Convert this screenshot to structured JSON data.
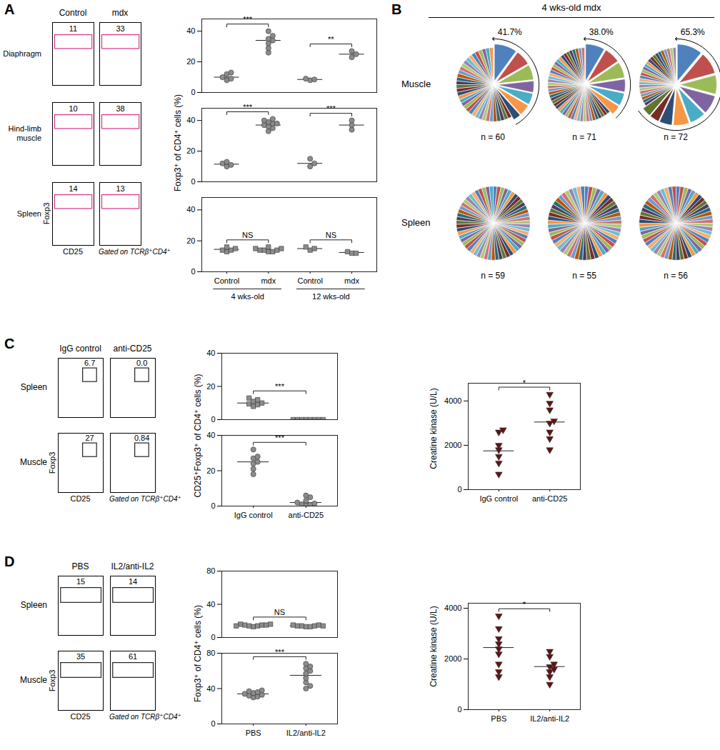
{
  "chart_data": [
    {
      "type": "flow",
      "panel": "A",
      "columns": [
        "Control",
        "mdx"
      ],
      "rows": [
        "Diaphragm",
        "Hind-limb muscle",
        "Spleen"
      ],
      "gates": [
        [
          "11",
          "33"
        ],
        [
          "10",
          "38"
        ],
        [
          "14",
          "13"
        ]
      ],
      "xlabel": "CD25",
      "ylabel": "Foxp3",
      "note": "Gated on TCRβ⁺CD4⁺"
    },
    {
      "type": "scatter",
      "ylabel": "Foxp3⁺ of CD4⁺ cells (%)",
      "categories": [
        "Control",
        "mdx",
        "Control",
        "mdx"
      ],
      "groups": [
        "4 wks-old",
        "12 wks-old"
      ],
      "subplots": [
        {
          "marker": "circle",
          "color": "#8c8c8c",
          "ylim": [
            0,
            48
          ],
          "yticks": [
            0,
            20,
            40
          ],
          "values": [
            [
              8,
              9,
              10,
              12,
              13
            ],
            [
              26,
              29,
              32,
              34,
              35,
              37,
              40
            ],
            [
              8,
              8.5,
              9
            ],
            [
              23,
              25,
              27
            ]
          ],
          "means": [
            10,
            34,
            8.5,
            25
          ],
          "comparisons": [
            "***",
            "**"
          ]
        },
        {
          "marker": "circle",
          "color": "#8c8c8c",
          "ylim": [
            0,
            48
          ],
          "yticks": [
            0,
            20,
            40
          ],
          "values": [
            [
              10,
              11,
              12,
              13
            ],
            [
              33,
              35,
              36,
              37,
              38,
              38,
              39,
              40,
              41
            ],
            [
              10,
              12,
              15
            ],
            [
              34,
              37,
              40
            ]
          ],
          "means": [
            11.5,
            37,
            12,
            37
          ],
          "comparisons": [
            "***",
            "***"
          ]
        },
        {
          "marker": "square",
          "color": "#8c8c8c",
          "ylim": [
            0,
            48
          ],
          "yticks": [
            0,
            20,
            40
          ],
          "values": [
            [
              13,
              14,
              14,
              15,
              16
            ],
            [
              13,
              13,
              14,
              14,
              14,
              15,
              15,
              16
            ],
            [
              14,
              15,
              16
            ],
            [
              12,
              12,
              13
            ]
          ],
          "means": [
            14.5,
            14,
            15,
            12.5
          ],
          "comparisons": [
            "NS",
            "NS"
          ]
        }
      ]
    },
    {
      "type": "pie",
      "panel": "B",
      "title": "4 wks-old mdx",
      "rows": [
        {
          "label": "Muscle",
          "pies": [
            {
              "values": [
                6,
                4,
                4,
                3,
                3,
                3,
                2,
                1,
                1,
                1,
                1,
                1,
                1,
                1,
                1,
                1,
                1,
                1,
                1,
                1,
                1,
                1,
                1,
                1,
                1,
                1,
                1,
                1,
                1,
                1,
                1,
                1,
                1,
                1,
                1,
                1,
                1,
                1,
                1,
                1,
                1,
                1
              ],
              "n_label": "n = 60",
              "expanded": {
                "value": 41.7,
                "label": "41.7%"
              }
            },
            {
              "values": [
                6,
                5,
                5,
                4,
                4,
                3,
                1,
                1,
                1,
                1,
                1,
                1,
                1,
                1,
                1,
                1,
                1,
                1,
                1,
                1,
                1,
                1,
                1,
                1,
                1,
                1,
                1,
                1,
                1,
                1,
                1,
                1,
                1,
                1,
                1,
                1,
                1,
                1,
                1,
                1,
                1,
                1,
                1,
                1,
                1,
                1,
                1,
                1,
                1,
                1
              ],
              "n_label": "n = 71",
              "expanded": {
                "value": 38.0,
                "label": "38.0%"
              }
            },
            {
              "values": [
                8,
                7,
                6,
                6,
                5,
                5,
                4,
                3,
                3,
                1,
                1,
                1,
                1,
                1,
                1,
                1,
                1,
                1,
                1,
                1,
                1,
                1,
                1,
                1,
                1,
                1,
                1,
                1,
                1,
                1,
                1,
                1,
                1,
                1
              ],
              "n_label": "n = 72",
              "expanded": {
                "value": 65.3,
                "label": "65.3%"
              }
            }
          ]
        },
        {
          "label": "Spleen",
          "pies": [
            {
              "values": [
                1,
                1,
                1,
                1,
                1,
                1,
                1,
                1,
                1,
                1,
                1,
                1,
                1,
                1,
                1,
                1,
                1,
                1,
                1,
                1,
                1,
                1,
                1,
                1,
                1,
                1,
                1,
                1,
                1,
                1,
                1,
                1,
                1,
                1,
                1,
                1,
                1,
                1,
                1,
                1,
                1,
                1,
                1,
                1,
                1,
                1,
                1,
                1,
                1,
                1,
                1,
                1,
                1,
                1,
                1,
                1,
                1,
                1,
                1
              ],
              "n_label": "n = 59"
            },
            {
              "values": [
                1,
                1,
                1,
                1,
                1,
                1,
                1,
                1,
                1,
                1,
                1,
                1,
                1,
                1,
                1,
                1,
                1,
                1,
                1,
                1,
                1,
                1,
                1,
                1,
                1,
                1,
                1,
                1,
                1,
                1,
                1,
                1,
                1,
                1,
                1,
                1,
                1,
                1,
                1,
                1,
                1,
                1,
                1,
                1,
                1,
                1,
                1,
                1,
                1,
                1,
                1,
                1,
                1,
                1,
                1
              ],
              "n_label": "n = 55"
            },
            {
              "values": [
                1,
                1,
                1,
                1,
                1,
                1,
                1,
                1,
                1,
                1,
                1,
                1,
                1,
                1,
                1,
                1,
                1,
                1,
                1,
                1,
                1,
                1,
                1,
                1,
                1,
                1,
                1,
                1,
                1,
                1,
                1,
                1,
                1,
                1,
                1,
                1,
                1,
                1,
                1,
                1,
                1,
                1,
                1,
                1,
                1,
                1,
                1,
                1,
                1,
                1,
                1,
                1,
                1,
                1,
                1,
                1
              ],
              "n_label": "n = 56"
            }
          ]
        }
      ]
    },
    {
      "type": "flow",
      "panel": "C",
      "columns": [
        "IgG control",
        "anti-CD25"
      ],
      "rows": [
        "Spleen",
        "Muscle"
      ],
      "gates": [
        [
          "6.7",
          "0.0"
        ],
        [
          "27",
          "0.84"
        ]
      ],
      "xlabel": "CD25",
      "ylabel": "Foxp3",
      "note": "Gated on TCRβ⁺CD4⁺"
    },
    {
      "type": "scatter",
      "ylabel": "CD25⁺Foxp3⁺ of CD4⁺ cells (%)",
      "categories": [
        "IgG control",
        "anti-CD25"
      ],
      "subplots": [
        {
          "marker": "square",
          "color": "#8c8c8c",
          "ylim": [
            0,
            40
          ],
          "yticks": [
            0,
            20,
            40
          ],
          "values": [
            [
              8,
              9,
              9.5,
              10,
              11,
              12,
              13
            ],
            [
              0,
              0,
              0,
              0,
              0,
              0,
              0,
              0
            ]
          ],
          "means": [
            10,
            0
          ],
          "comparisons": [
            "***"
          ]
        },
        {
          "marker": "circle",
          "color": "#8c8c8c",
          "ylim": [
            0,
            40
          ],
          "yticks": [
            0,
            20,
            40
          ],
          "values": [
            [
              18,
              21,
              24,
              25,
              27,
              28,
              32
            ],
            [
              0.5,
              0.8,
              1,
              1.5,
              2,
              3,
              5,
              6
            ]
          ],
          "means": [
            25,
            2
          ],
          "comparisons": [
            "***"
          ]
        }
      ]
    },
    {
      "type": "scatter",
      "ylabel": "Creatine kinase (U/L)",
      "categories": [
        "IgG control",
        "anti-CD25"
      ],
      "subplots": [
        {
          "marker": "triangle-down",
          "color": "#5e1414",
          "ylim": [
            0,
            4800
          ],
          "yticks": [
            0,
            2000,
            4000
          ],
          "values": [
            [
              700,
              1200,
              1500,
              1800,
              2000,
              2600,
              2700
            ],
            [
              1800,
              2300,
              2600,
              3000,
              3100,
              3600,
              3900,
              4300
            ]
          ],
          "means": [
            1750,
            3050
          ],
          "comparisons": [
            "*"
          ]
        }
      ]
    },
    {
      "type": "flow",
      "panel": "D",
      "columns": [
        "PBS",
        "IL2/anti-IL2"
      ],
      "rows": [
        "Spleen",
        "Muscle"
      ],
      "gates": [
        [
          "15",
          "14"
        ],
        [
          "35",
          "61"
        ]
      ],
      "xlabel": "CD25",
      "ylabel": "Foxp3",
      "note": "Gated on TCRβ⁺CD4⁺"
    },
    {
      "type": "scatter",
      "ylabel": "Foxp3⁺ of CD4⁺ cells (%)",
      "categories": [
        "PBS",
        "IL2/anti-IL2"
      ],
      "subplots": [
        {
          "marker": "square",
          "color": "#8c8c8c",
          "ylim": [
            0,
            80
          ],
          "yticks": [
            0,
            40,
            80
          ],
          "values": [
            [
              13,
              14,
              14,
              15,
              15,
              15,
              16,
              16,
              14
            ],
            [
              13,
              13,
              14,
              14,
              14,
              15,
              15,
              14
            ]
          ],
          "means": [
            15,
            14
          ],
          "comparisons": [
            "NS"
          ]
        },
        {
          "marker": "circle",
          "color": "#8c8c8c",
          "ylim": [
            0,
            80
          ],
          "yticks": [
            0,
            40,
            80
          ],
          "values": [
            [
              30,
              31,
              32,
              33,
              34,
              35,
              36,
              37,
              38
            ],
            [
              40,
              43,
              47,
              52,
              57,
              60,
              63,
              65,
              68
            ]
          ],
          "means": [
            34,
            55
          ],
          "comparisons": [
            "***"
          ]
        }
      ]
    },
    {
      "type": "scatter",
      "ylabel": "Creatine kinase (U/L)",
      "categories": [
        "PBS",
        "IL2/anti-IL2"
      ],
      "subplots": [
        {
          "marker": "triangle-down",
          "color": "#5e1414",
          "ylim": [
            0,
            4200
          ],
          "yticks": [
            0,
            2000,
            4000
          ],
          "values": [
            [
              1300,
              1500,
              1800,
              2200,
              2400,
              2600,
              2800,
              3200,
              3700
            ],
            [
              1000,
              1300,
              1500,
              1600,
              1700,
              1800,
              2100,
              2300
            ]
          ],
          "means": [
            2450,
            1700
          ],
          "comparisons": [
            "*"
          ]
        }
      ]
    }
  ]
}
